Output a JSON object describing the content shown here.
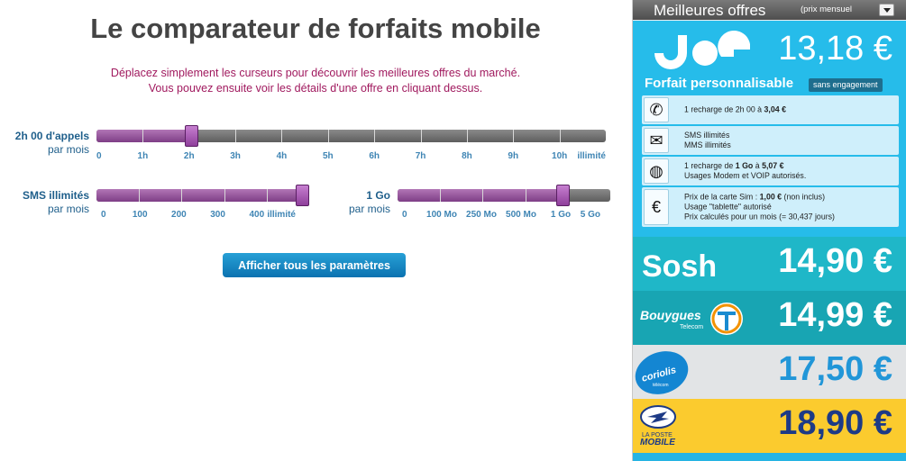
{
  "header": {
    "title": "Le comparateur de forfaits mobile",
    "intro_line1": "Déplacez simplement les curseurs pour découvrir les meilleures offres du marché.",
    "intro_line2": "Vous pouvez ensuite voir les détails d'une offre en cliquant dessus."
  },
  "sliders": {
    "calls": {
      "label": "2h 00 d'appels",
      "unit": "par mois",
      "value_fraction": 0.188,
      "ticks": [
        "0",
        "1h",
        "2h",
        "3h",
        "4h",
        "5h",
        "6h",
        "7h",
        "8h",
        "9h",
        "10h",
        "illimité"
      ]
    },
    "sms": {
      "label": "SMS illimités",
      "unit": "par mois",
      "value_fraction": 0.98,
      "ticks": [
        "0",
        "100",
        "200",
        "300",
        "400",
        "illimité"
      ]
    },
    "data": {
      "label": "1 Go",
      "unit": "par mois",
      "value_fraction": 0.78,
      "ticks": [
        "0",
        "100 Mo",
        "250 Mo",
        "500 Mo",
        "1 Go",
        "5 Go"
      ]
    }
  },
  "actions": {
    "show_all_label": "Afficher tous les paramètres"
  },
  "best_offers": {
    "title": "Meilleures offres",
    "sort_label": "(prix  mensuel",
    "top_offer": {
      "brand": "joe",
      "price": "13,18 €",
      "plan_name": "Forfait personnalisable",
      "badge": "sans engagement",
      "details": [
        {
          "icon": "phone-icon",
          "lines": [
            "1 recharge de 2h 00 à 3,04 €"
          ]
        },
        {
          "icon": "envelope-icon",
          "lines": [
            "SMS illimités",
            "MMS illimités"
          ]
        },
        {
          "icon": "globe-icon",
          "lines": [
            "1 recharge de 1 Go à 5,07 €",
            "Usages Modem et VOIP autorisés."
          ]
        },
        {
          "icon": "euro-icon",
          "lines": [
            "Prix de la carte Sim : 1,00 € (non inclus)",
            "Usage \"tablette\" autorisé",
            "Prix calculés pour un mois (= 30,437 jours)"
          ]
        }
      ]
    },
    "offers": [
      {
        "brand": "Sosh",
        "price": "14,90 €",
        "bg": "#1fb7c8",
        "color": "#ffffff"
      },
      {
        "brand": "Bouygues",
        "sub": "Telecom",
        "price": "14,99 €",
        "bg": "#18a5b3",
        "color": "#ffffff"
      },
      {
        "brand": "coriolis",
        "sub": "télécom",
        "price": "17,50 €",
        "bg": "#e2e4e6",
        "color": "#2196d8"
      },
      {
        "brand": "LA POSTE",
        "sub": "MOBILE",
        "price": "18,90 €",
        "bg": "#fbcb2e",
        "color": "#1d3a86"
      }
    ]
  }
}
